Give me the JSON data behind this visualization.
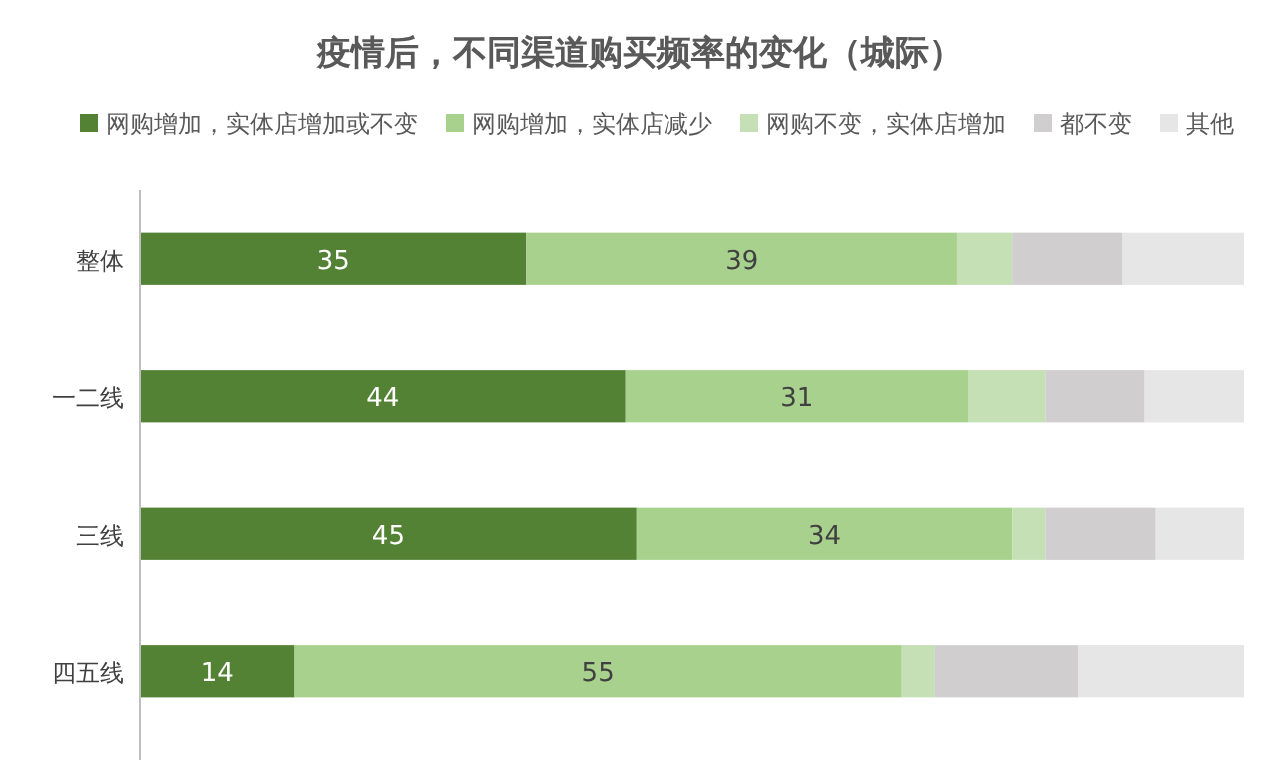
{
  "chart_data": {
    "type": "bar",
    "orientation": "horizontal",
    "stacked": true,
    "title": "疫情后，不同渠道购买频率的变化（城际）",
    "categories": [
      "整体",
      "一二线",
      "三线",
      "四五线"
    ],
    "xlim": [
      0,
      100
    ],
    "legend": "top",
    "series": [
      {
        "name": "网购增加，实体店增加或不变",
        "color": "#548235",
        "values": [
          35,
          44,
          45,
          14
        ],
        "value_labels": [
          "35",
          "44",
          "45",
          "14"
        ]
      },
      {
        "name": "网购增加，实体店减少",
        "color": "#a9d18e",
        "values": [
          39,
          31,
          34,
          55
        ],
        "value_labels": [
          "39",
          "31",
          "34",
          "55"
        ]
      },
      {
        "name": "网购不变，实体店增加",
        "color": "#c5e0b4",
        "values": [
          5,
          7,
          3,
          3
        ]
      },
      {
        "name": "都不变",
        "color": "#d0cece",
        "values": [
          10,
          9,
          10,
          13
        ]
      },
      {
        "name": "其他",
        "color": "#e7e6e6",
        "values": [
          11,
          9,
          8,
          15
        ]
      }
    ]
  }
}
